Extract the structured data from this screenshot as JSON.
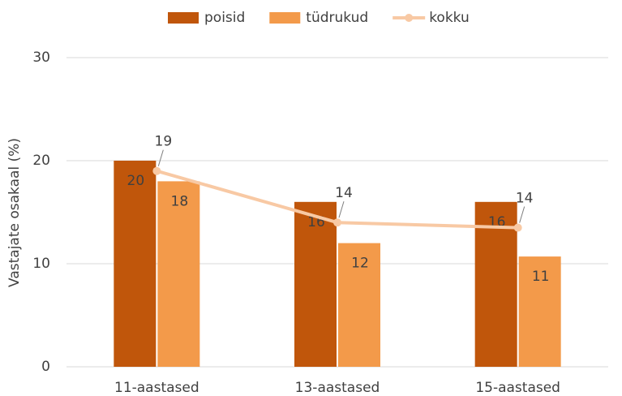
{
  "chart_data": {
    "type": "bar",
    "y_label": "Vastajate osakaal (%)",
    "categories": [
      "11-aastased",
      "13-aastased",
      "15-aastased"
    ],
    "series": [
      {
        "name": "poisid",
        "color": "#c0560b",
        "type": "bar",
        "values": [
          20,
          16,
          16
        ]
      },
      {
        "name": "tüdrukud",
        "color": "#f39a4a",
        "type": "bar",
        "values": [
          18,
          12,
          10.7
        ],
        "value_labels": [
          "18",
          "12",
          "11"
        ]
      },
      {
        "name": "kokku",
        "color": "#f8c9a4",
        "type": "line",
        "values": [
          19,
          14,
          13.5
        ],
        "value_labels": [
          "19",
          "14",
          "14"
        ]
      }
    ],
    "ylim": [
      0,
      30
    ],
    "yticks": [
      0,
      10,
      20,
      30
    ],
    "grid": true,
    "legend": "top"
  }
}
